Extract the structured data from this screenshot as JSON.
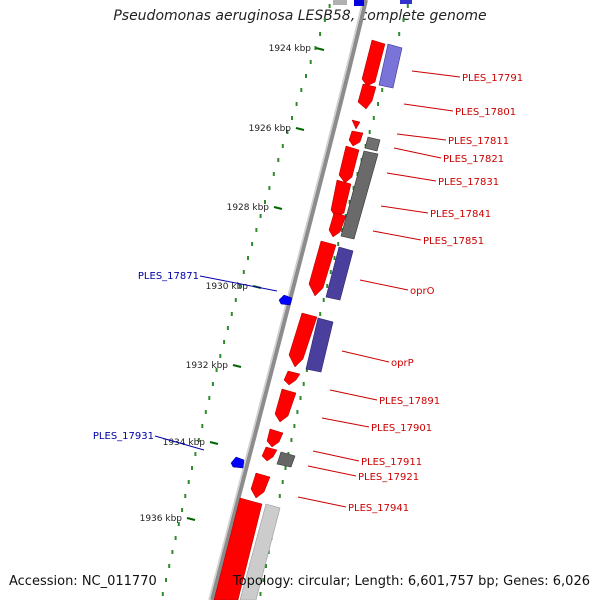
{
  "title": "Pseudomonas aeruginosa LESB58, complete genome",
  "accession": "Accession: NC_011770",
  "topology": "Topology: circular; Length: 6,601,757 bp; Genes: 6,026",
  "colors": {
    "backbone": "#8c8c8c",
    "gc_dots": "#2e8b2e",
    "forward_gene": "#ff0000",
    "reverse_gene": "#ff0000",
    "related_hit": "#5a4fb0",
    "gray_hit": "#777777",
    "light_hit": "#c8c8c8",
    "label_red": "#cc0000",
    "label_blue": "#0000aa",
    "tick_mark": "#006600"
  },
  "ticks": [
    "1924 kbp",
    "1926 kbp",
    "1928 kbp",
    "1930 kbp",
    "1932 kbp",
    "1934 kbp",
    "1936 kbp"
  ],
  "gene_labels_right": [
    "PLES_17791",
    "PLES_17801",
    "PLES_17811",
    "PLES_17821",
    "PLES_17831",
    "PLES_17841",
    "PLES_17851",
    "oprO",
    "oprP",
    "PLES_17891",
    "PLES_17901",
    "PLES_17911",
    "PLES_17921",
    "PLES_17941"
  ],
  "gene_labels_left": [
    "PLES_17871",
    "PLES_17931"
  ]
}
